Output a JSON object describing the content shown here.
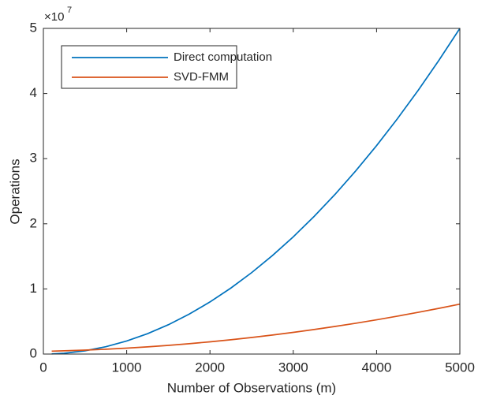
{
  "chart_data": {
    "type": "line",
    "xlabel": "Number of Observations (m)",
    "ylabel": "Operations",
    "y_multiplier_base": "×10",
    "y_multiplier_power": "7",
    "x": [
      100,
      250,
      500,
      750,
      1000,
      1250,
      1500,
      1750,
      2000,
      2250,
      2500,
      2750,
      3000,
      3250,
      3500,
      3750,
      4000,
      4250,
      4500,
      4750,
      5000
    ],
    "series": [
      {
        "name": "Direct computation",
        "color": "#0072bd",
        "values": [
          20000,
          125000,
          500000,
          1125000,
          2000000,
          3125000,
          4500000,
          6125000,
          8000000,
          10125000,
          12500000,
          15125000,
          18000000,
          21125000,
          24500000,
          28125000,
          32000000,
          36125000,
          40500000,
          45125000,
          50000000
        ]
      },
      {
        "name": "SVD-FMM",
        "color": "#d95319",
        "values": [
          447000,
          497500,
          605000,
          742500,
          910000,
          1107500,
          1335000,
          1592500,
          1880000,
          2197500,
          2545000,
          2922500,
          3330000,
          3767500,
          4235000,
          4732500,
          5260000,
          5817500,
          6405000,
          7022500,
          7670000
        ]
      }
    ],
    "xlim": [
      0,
      5000
    ],
    "xticks": [
      0,
      1000,
      2000,
      3000,
      4000,
      5000
    ],
    "ylim": [
      0,
      50000000
    ],
    "yticks": [
      {
        "value": 0,
        "label": "0"
      },
      {
        "value": 10000000,
        "label": "1"
      },
      {
        "value": 20000000,
        "label": "2"
      },
      {
        "value": 30000000,
        "label": "3"
      },
      {
        "value": 40000000,
        "label": "4"
      },
      {
        "value": 50000000,
        "label": "5"
      }
    ],
    "legend": "upper left"
  }
}
